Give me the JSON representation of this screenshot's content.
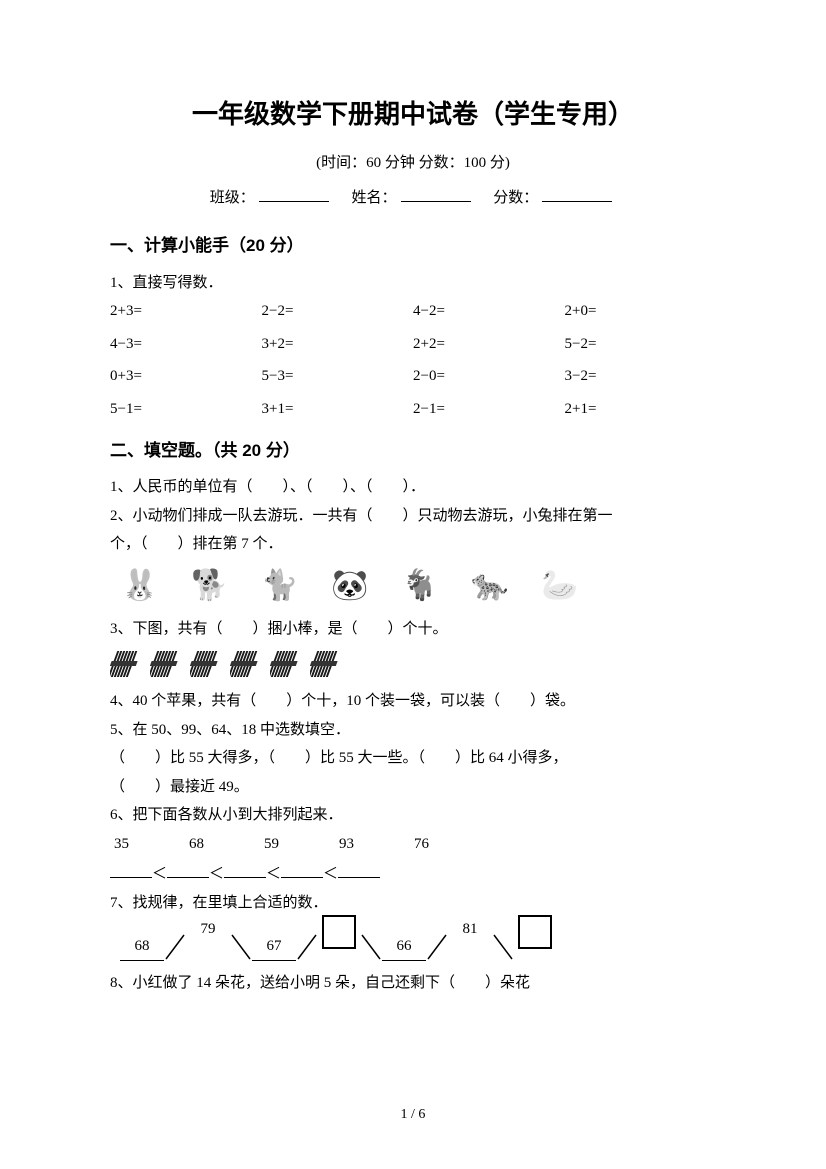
{
  "title": "一年级数学下册期中试卷（学生专用）",
  "subtitle": "(时间：60 分钟    分数：100 分)",
  "info": {
    "class_label": "班级：",
    "name_label": "姓名：",
    "score_label": "分数："
  },
  "s1": {
    "head": "一、计算小能手（20 分）",
    "q1": "1、直接写得数．",
    "cells": [
      "2+3=",
      "2−2=",
      "4−2=",
      "2+0=",
      "4−3=",
      "3+2=",
      "2+2=",
      "5−2=",
      "0+3=",
      "5−3=",
      "2−0=",
      "3−2=",
      "5−1=",
      "3+1=",
      "2−1=",
      "2+1="
    ]
  },
  "s2": {
    "head": "二、填空题。（共 20 分）",
    "q1": "1、人民币的单位有（　　）、（　　）、（　　）．",
    "q2a": "2、小动物们排成一队去游玩．一共有（　　）只动物去游玩，小兔排在第一",
    "q2b": "个，（　　）排在第 7 个．",
    "animals": [
      "🐰",
      "🐕",
      "🐈",
      "🐼",
      "🐐",
      "🐆",
      "🦢"
    ],
    "q3": "3、下图，共有（　　）捆小棒，是（　　）个十。",
    "bundle_count": 6,
    "q4": "4、40 个苹果，共有（　　）个十，10 个装一袋，可以装（　　）袋。",
    "q5a": "5、在 50、99、64、18 中选数填空．",
    "q5b": "（　　）比 55 大得多，（　　）比 55 大一些。（　　）比 64 小得多，",
    "q5c": "（　　）最接近 49。",
    "q6a": "6、把下面各数从小到大排列起来．",
    "q6nums": [
      "35",
      "68",
      "59",
      "93",
      "76"
    ],
    "q6lt": "＜",
    "q7": "7、找规律，在里填上合适的数．",
    "zig": {
      "a": "68",
      "b": "79",
      "c": "67",
      "d": "66",
      "e": "81"
    },
    "q8": "8、小红做了 14 朵花，送给小明 5 朵，自己还剩下（　　）朵花"
  },
  "footer": "1 / 6",
  "colors": {
    "text": "#000000",
    "bg": "#ffffff"
  }
}
